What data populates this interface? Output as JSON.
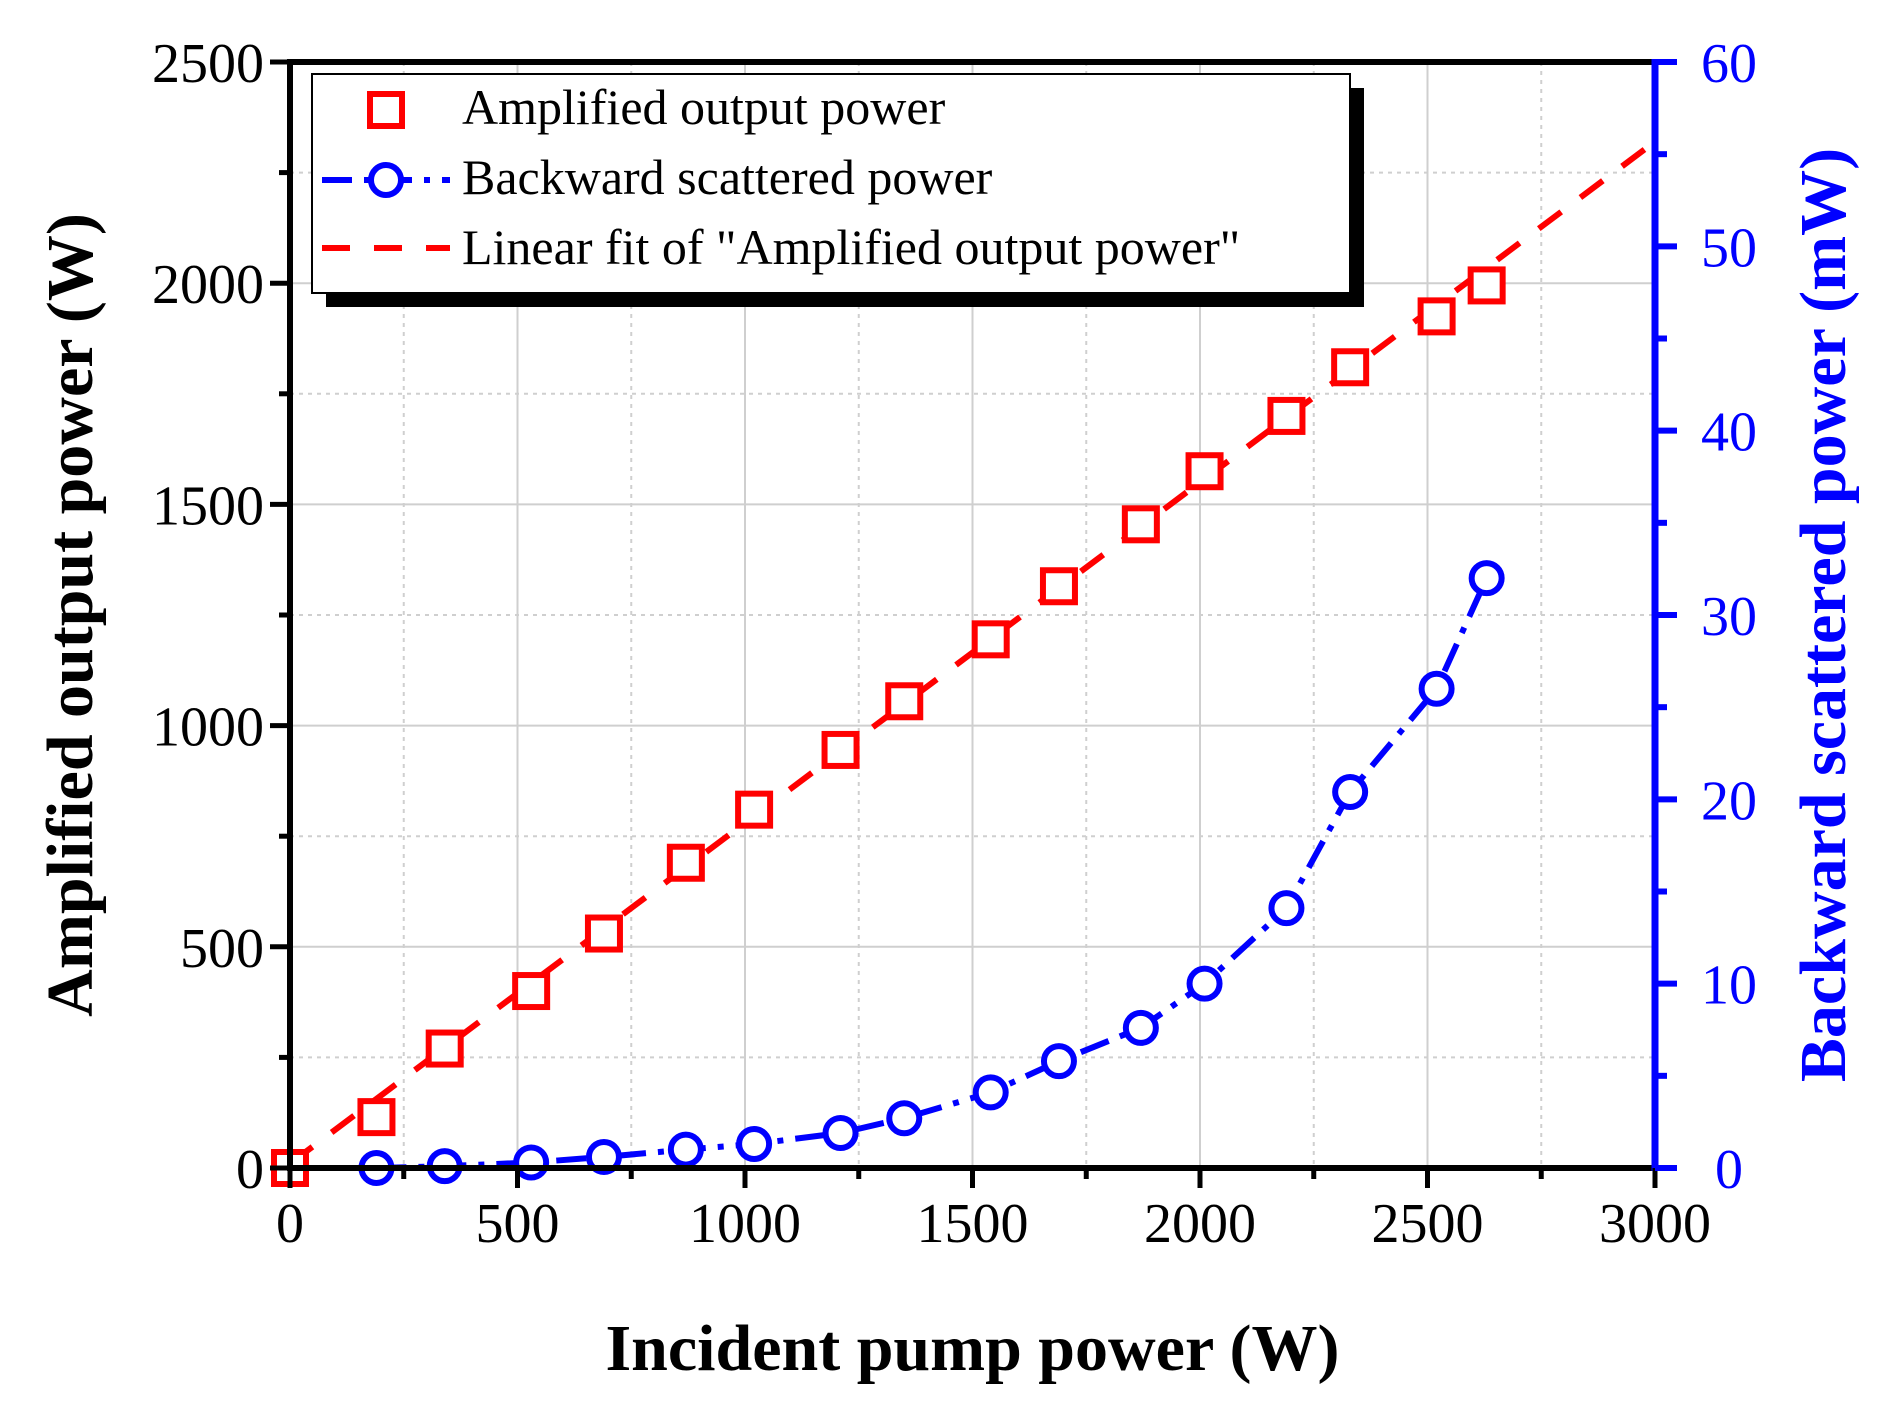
{
  "chart_data": {
    "type": "scatter",
    "xlabel": "Incident pump power (W)",
    "ylabel": "Amplified output power (W)",
    "y2label": "Backward scattered power (mW)",
    "xlim": [
      0,
      3000
    ],
    "ylim": [
      0,
      2500
    ],
    "y2lim": [
      0,
      60
    ],
    "xticks": [
      0,
      500,
      1000,
      1500,
      2000,
      2500,
      3000
    ],
    "yticks": [
      0,
      500,
      1000,
      1500,
      2000,
      2500
    ],
    "y2ticks": [
      0,
      10,
      20,
      30,
      40,
      50,
      60
    ],
    "grid": true,
    "legend_position": "top-left",
    "series": [
      {
        "name": "Amplified output power",
        "axis": "left",
        "marker": "square",
        "color": "#ff0000",
        "x": [
          0,
          190,
          340,
          530,
          690,
          870,
          1020,
          1210,
          1350,
          1540,
          1690,
          1870,
          2010,
          2190,
          2330,
          2520,
          2630
        ],
        "y": [
          0,
          115,
          270,
          400,
          530,
          690,
          810,
          945,
          1055,
          1195,
          1315,
          1455,
          1575,
          1700,
          1810,
          1925,
          1995
        ]
      },
      {
        "name": "Backward scattered power",
        "axis": "right",
        "marker": "circle",
        "line": "dash-dot",
        "color": "#0000ff",
        "x": [
          190,
          340,
          530,
          690,
          870,
          1020,
          1210,
          1350,
          1540,
          1690,
          1870,
          2010,
          2190,
          2330,
          2520,
          2630
        ],
        "y": [
          0,
          0.1,
          0.3,
          0.6,
          1.0,
          1.3,
          1.9,
          2.7,
          4.1,
          5.8,
          7.6,
          10.0,
          14.1,
          20.4,
          26.0,
          32.0
        ]
      },
      {
        "name": "Linear fit of \"Amplified output power\"",
        "axis": "left",
        "line": "dashed",
        "color": "#ff0000",
        "x": [
          0,
          3000
        ],
        "y": [
          10,
          2320
        ]
      }
    ]
  }
}
